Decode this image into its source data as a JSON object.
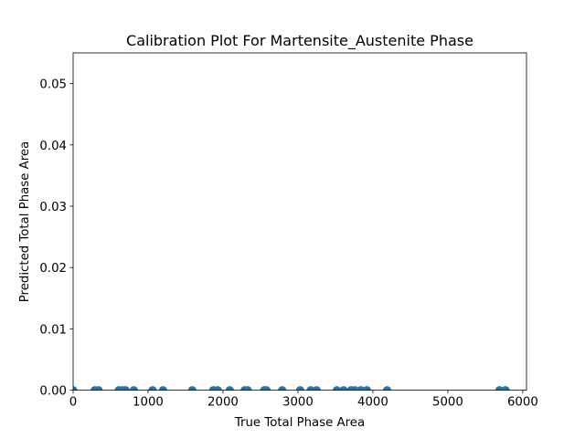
{
  "chart_data": {
    "type": "scatter",
    "title": "Calibration Plot For Martensite_Austenite Phase",
    "xlabel": "True Total Phase Area",
    "ylabel": "Predicted Total Phase Area",
    "xlim": [
      0,
      6050
    ],
    "ylim": [
      0,
      0.055
    ],
    "xticks": [
      0,
      1000,
      2000,
      3000,
      4000,
      5000,
      6000
    ],
    "xtick_labels": [
      "0",
      "1000",
      "2000",
      "3000",
      "4000",
      "5000",
      "6000"
    ],
    "yticks": [
      0.0,
      0.01,
      0.02,
      0.03,
      0.04,
      0.05
    ],
    "ytick_labels": [
      "0.00",
      "0.01",
      "0.02",
      "0.03",
      "0.04",
      "0.05"
    ],
    "grid": false,
    "series": [
      {
        "color": "#1f77b4",
        "points": [
          {
            "x": 0,
            "y": 0
          },
          {
            "x": 290,
            "y": 0
          },
          {
            "x": 340,
            "y": 0
          },
          {
            "x": 610,
            "y": 0
          },
          {
            "x": 660,
            "y": 0
          },
          {
            "x": 700,
            "y": 0
          },
          {
            "x": 810,
            "y": 0
          },
          {
            "x": 1060,
            "y": 0
          },
          {
            "x": 1200,
            "y": 0
          },
          {
            "x": 1590,
            "y": 0
          },
          {
            "x": 1870,
            "y": 0
          },
          {
            "x": 1930,
            "y": 0
          },
          {
            "x": 2090,
            "y": 0
          },
          {
            "x": 2290,
            "y": 0
          },
          {
            "x": 2330,
            "y": 0
          },
          {
            "x": 2550,
            "y": 0
          },
          {
            "x": 2580,
            "y": 0
          },
          {
            "x": 2790,
            "y": 0
          },
          {
            "x": 3030,
            "y": 0
          },
          {
            "x": 3170,
            "y": 0
          },
          {
            "x": 3250,
            "y": 0
          },
          {
            "x": 3520,
            "y": 0
          },
          {
            "x": 3610,
            "y": 0
          },
          {
            "x": 3710,
            "y": 0
          },
          {
            "x": 3760,
            "y": 0
          },
          {
            "x": 3840,
            "y": 0
          },
          {
            "x": 3920,
            "y": 0
          },
          {
            "x": 4190,
            "y": 0
          },
          {
            "x": 5690,
            "y": 0
          },
          {
            "x": 5770,
            "y": 0
          }
        ]
      }
    ]
  }
}
